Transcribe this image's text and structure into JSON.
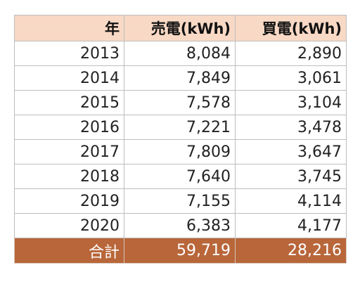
{
  "table": {
    "headers": [
      "年",
      "売電(kWh)",
      "買電(kWh)"
    ],
    "rows": [
      [
        "2013",
        "8,084",
        "2,890"
      ],
      [
        "2014",
        "7,849",
        "3,061"
      ],
      [
        "2015",
        "7,578",
        "3,104"
      ],
      [
        "2016",
        "7,221",
        "3,478"
      ],
      [
        "2017",
        "7,809",
        "3,647"
      ],
      [
        "2018",
        "7,640",
        "3,745"
      ],
      [
        "2019",
        "7,155",
        "4,114"
      ],
      [
        "2020",
        "6,383",
        "4,177"
      ]
    ],
    "total": [
      "合計",
      "59,719",
      "28,216"
    ]
  },
  "colors": {
    "header_bg": "#f8d9c5",
    "total_bg": "#b8663a",
    "border": "#bdbdbd"
  }
}
